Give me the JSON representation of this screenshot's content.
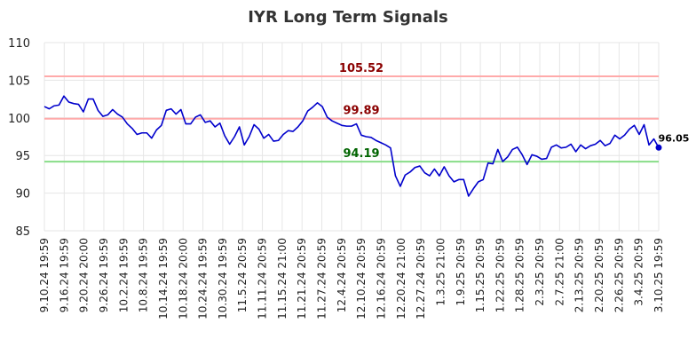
{
  "chart_data": {
    "type": "line",
    "title": "IYR Long Term Signals",
    "xlabel": "",
    "ylabel": "",
    "ylim": [
      85,
      110
    ],
    "yticks": [
      85,
      90,
      95,
      100,
      105,
      110
    ],
    "grid": true,
    "x_tick_labels": [
      "9.10.24 19:59",
      "9.16.24 19:59",
      "9.20.24 20:00",
      "9.26.24 19:59",
      "10.2.24 19:59",
      "10.8.24 19:59",
      "10.14.24 19:59",
      "10.18.24 20:00",
      "10.24.24 19:59",
      "10.30.24 19:59",
      "11.5.24 20:59",
      "11.11.24 20:59",
      "11.15.24 21:00",
      "11.21.24 20:59",
      "11.27.24 20:59",
      "12.4.24 20:59",
      "12.10.24 20:59",
      "12.16.24 20:59",
      "12.20.24 21:00",
      "12.27.24 20:59",
      "1.3.25 21:00",
      "1.9.25 20:59",
      "1.15.25 20:59",
      "1.22.25 20:59",
      "1.28.25 20:59",
      "2.3.25 20:59",
      "2.7.25 21:00",
      "2.13.25 20:59",
      "2.20.25 20:59",
      "2.26.25 20:59",
      "3.4.25 20:59",
      "3.10.25 19:59"
    ],
    "series": [
      {
        "color": "#0000cc",
        "values": [
          101.5,
          101.2,
          101.6,
          101.7,
          102.9,
          102.1,
          101.9,
          101.8,
          100.8,
          102.5,
          102.5,
          101.0,
          100.2,
          100.4,
          101.1,
          100.5,
          100.1,
          99.2,
          98.6,
          97.8,
          98.0,
          98.0,
          97.3,
          98.4,
          99.0,
          101.0,
          101.2,
          100.5,
          101.1,
          99.2,
          99.2,
          100.1,
          100.4,
          99.4,
          99.6,
          98.8,
          99.3,
          97.6,
          96.5,
          97.5,
          98.8,
          96.4,
          97.5,
          99.1,
          98.5,
          97.3,
          97.8,
          96.9,
          97.0,
          97.8,
          98.3,
          98.2,
          98.8,
          99.6,
          100.9,
          101.4,
          102.0,
          101.5,
          100.1,
          99.6,
          99.3,
          99.0,
          98.9,
          98.9,
          99.2,
          97.7,
          97.5,
          97.4,
          97.0,
          96.7,
          96.4,
          96.0,
          92.3,
          90.9,
          92.4,
          92.8,
          93.4,
          93.6,
          92.7,
          92.3,
          93.2,
          92.3,
          93.5,
          92.3,
          91.5,
          91.8,
          91.8,
          89.6,
          90.6,
          91.5,
          91.8,
          94.0,
          93.9,
          95.8,
          94.2,
          94.8,
          95.8,
          96.1,
          95.1,
          93.8,
          95.1,
          94.9,
          94.5,
          94.6,
          96.1,
          96.4,
          96.0,
          96.1,
          96.5,
          95.5,
          96.4,
          95.9,
          96.3,
          96.5,
          97.0,
          96.3,
          96.6,
          97.7,
          97.2,
          97.7,
          98.5,
          99.0,
          97.8,
          99.1,
          96.4,
          97.2,
          96.05
        ]
      }
    ],
    "levels": [
      {
        "value": 105.52,
        "label": "105.52",
        "line_color": "#ffaaaa",
        "text_color": "#8b0000"
      },
      {
        "value": 99.89,
        "label": "99.89",
        "line_color": "#ffaaaa",
        "text_color": "#8b0000"
      },
      {
        "value": 94.19,
        "label": "94.19",
        "line_color": "#88dd88",
        "text_color": "#006400"
      }
    ],
    "last_value_label": "96.05"
  }
}
